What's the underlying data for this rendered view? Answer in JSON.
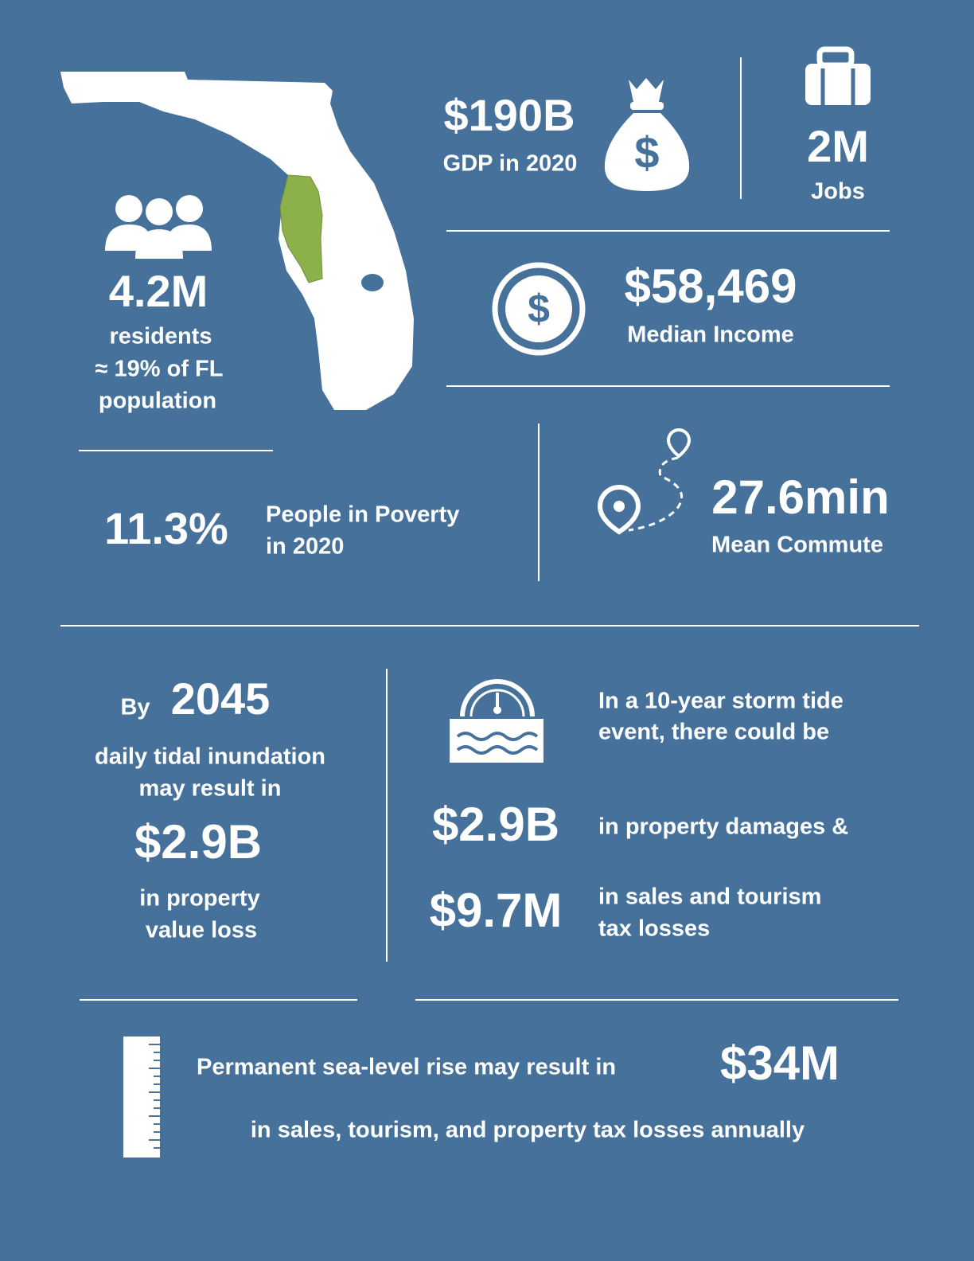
{
  "population": {
    "value": "4.2M",
    "lines": [
      "residents",
      "≈ 19% of FL",
      "population"
    ]
  },
  "gdp": {
    "value": "$190B",
    "label": "GDP in 2020"
  },
  "jobs": {
    "value": "2M",
    "label": "Jobs"
  },
  "income": {
    "value": "$58,469",
    "label": "Median Income"
  },
  "poverty": {
    "value": "11.3%",
    "lines": [
      "People in Poverty",
      "in 2020"
    ]
  },
  "commute": {
    "value": "27.6min",
    "label": "Mean Commute"
  },
  "tidal": {
    "prefix": "By",
    "year": "2045",
    "lines": [
      "daily tidal inundation",
      "may result in"
    ],
    "value": "$2.9B",
    "suffix": [
      "in property",
      "value loss"
    ]
  },
  "storm": {
    "intro": [
      "In a 10-year storm tide",
      "event, there could be"
    ],
    "items": [
      {
        "value": "$2.9B",
        "lines": [
          "in property damages &"
        ]
      },
      {
        "value": "$9.7M",
        "lines": [
          "in sales and tourism",
          "tax losses"
        ]
      }
    ]
  },
  "sea_level": {
    "text": "Permanent sea-level rise may result in",
    "value": "$34M",
    "suffix": "in sales, tourism, and property tax losses annually"
  }
}
